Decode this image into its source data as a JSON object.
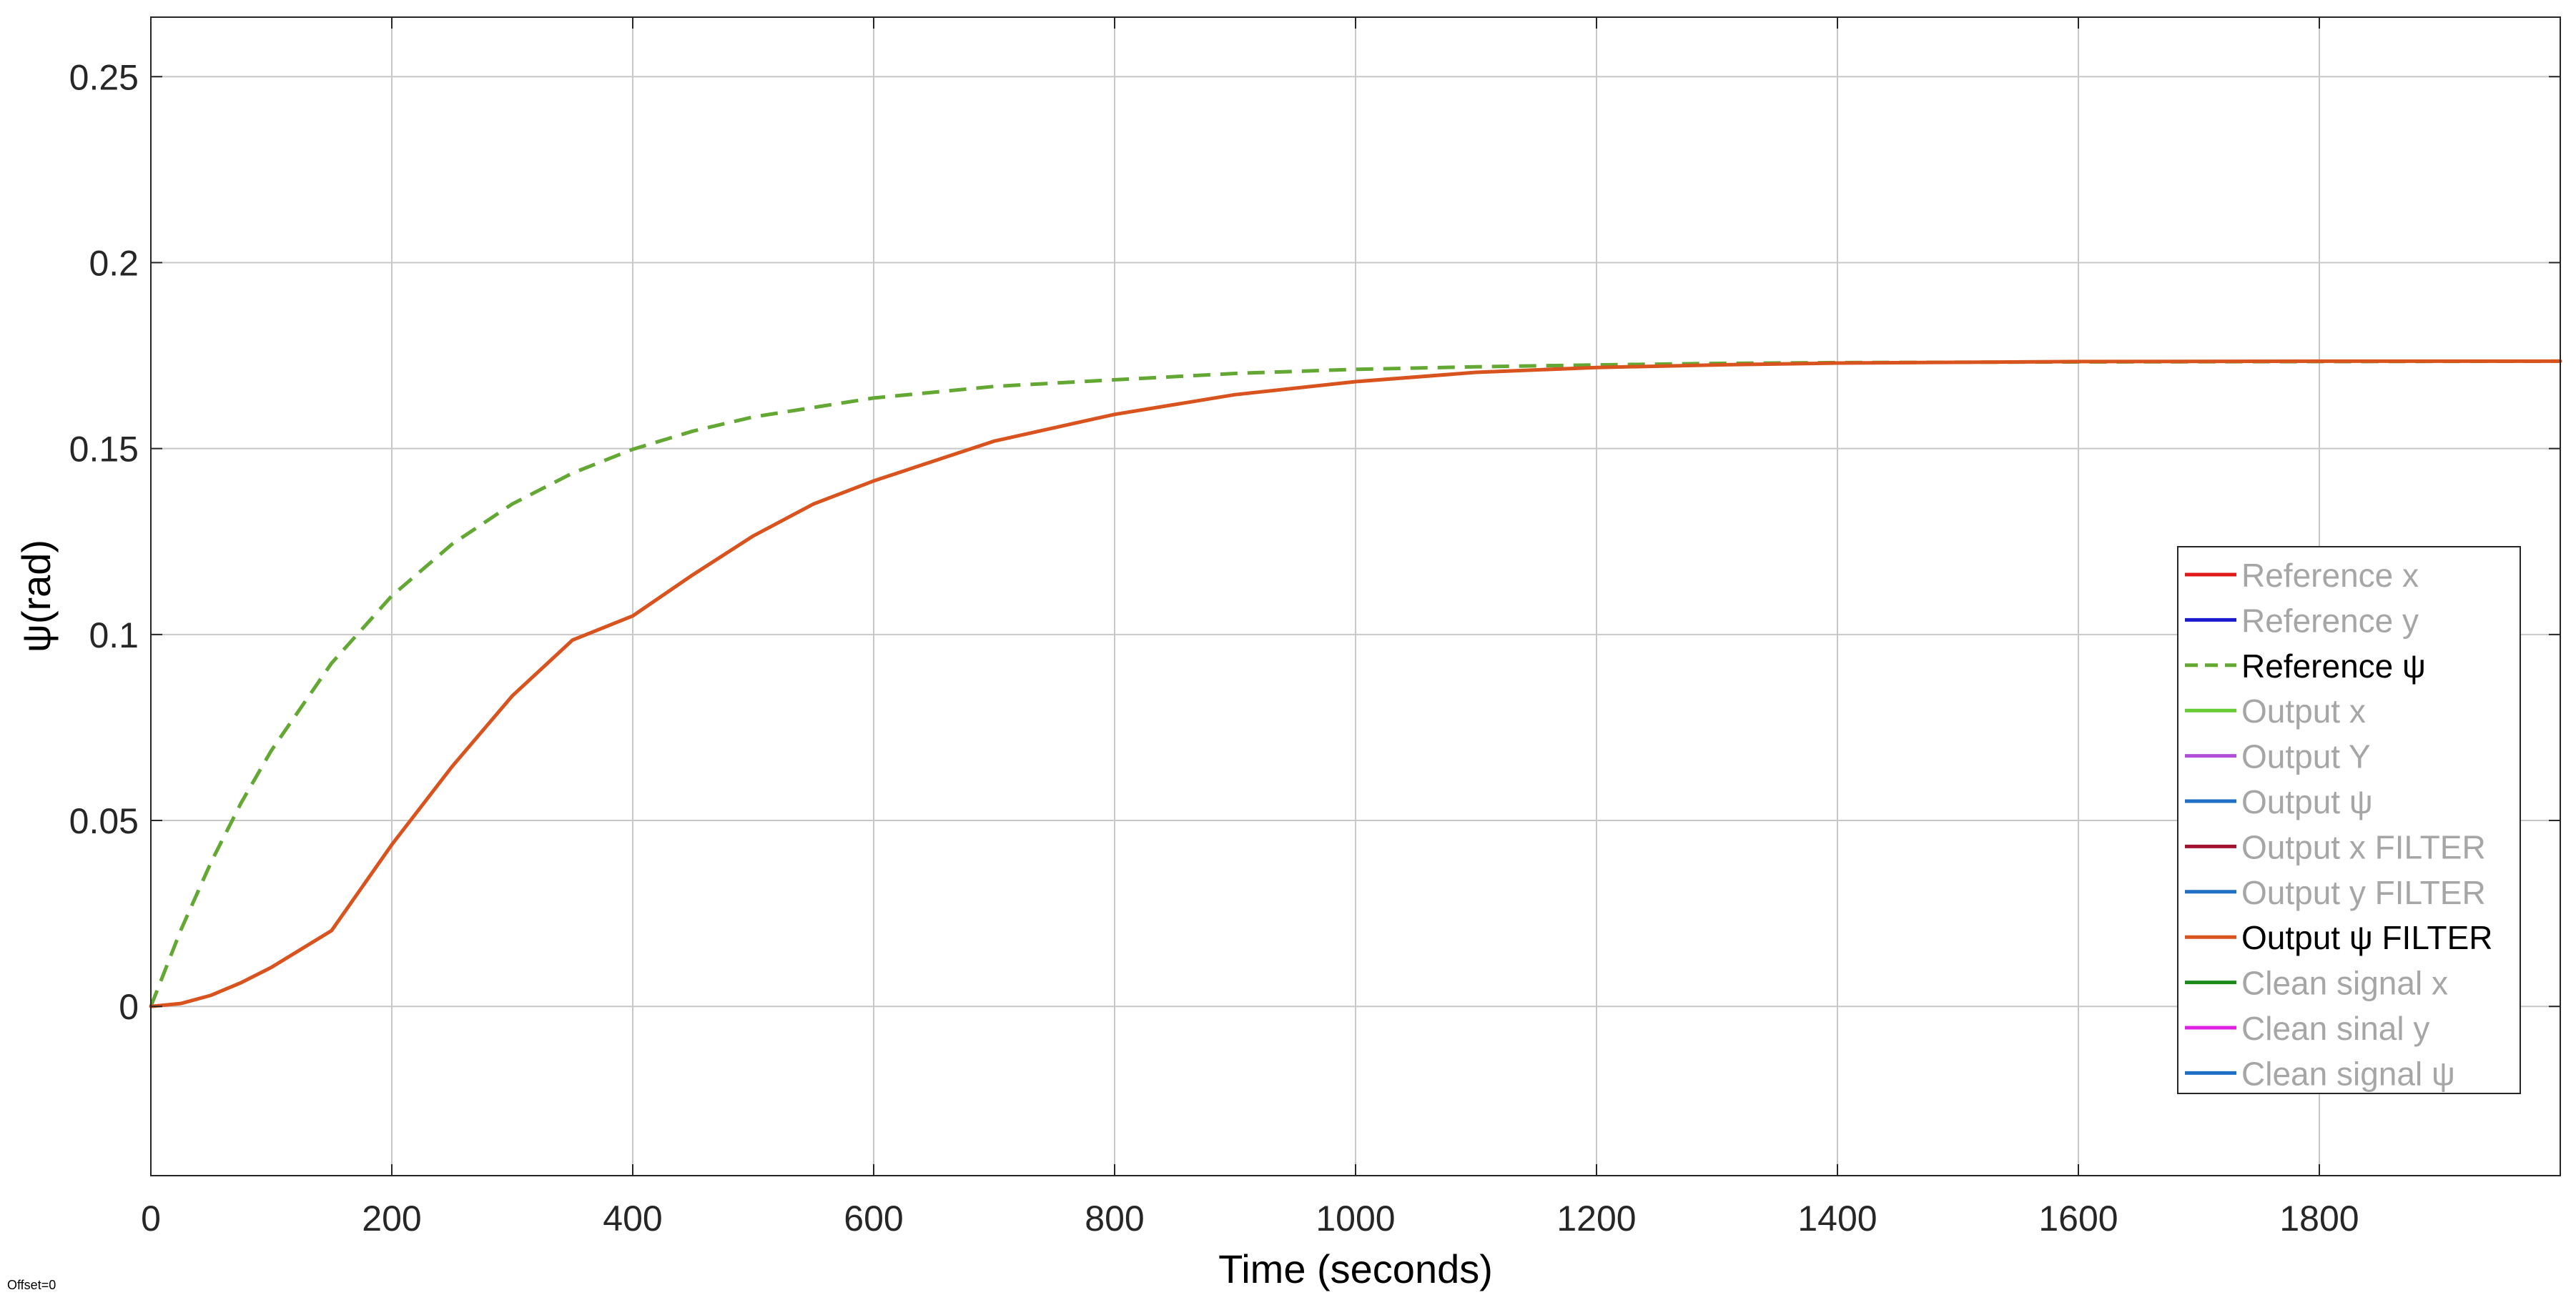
{
  "footer": {
    "offset_label": "Offset=0"
  },
  "chart_data": {
    "type": "line",
    "title": "",
    "xlabel": "Time (seconds)",
    "ylabel": "ψ(rad)",
    "xlim": [
      0,
      2000
    ],
    "ylim": [
      -0.0455,
      0.266
    ],
    "xticks": [
      0,
      200,
      400,
      600,
      800,
      1000,
      1200,
      1400,
      1600,
      1800
    ],
    "xtick_labels": [
      "0",
      "200",
      "400",
      "600",
      "800",
      "1000",
      "1200",
      "1400",
      "1600",
      "1800"
    ],
    "yticks": [
      0,
      0.05,
      0.1,
      0.15,
      0.2,
      0.25
    ],
    "ytick_labels": [
      "0",
      "0.05",
      "0.1",
      "0.15",
      "0.2",
      "0.25"
    ],
    "grid": true,
    "legend_position": "right",
    "legend": [
      {
        "name": "Reference x",
        "color": "#e01818",
        "style": "solid",
        "active": false
      },
      {
        "name": "Reference y",
        "color": "#1a1acc",
        "style": "solid",
        "active": false
      },
      {
        "name": "Reference ψ",
        "color": "#62a832",
        "style": "dashed",
        "active": true
      },
      {
        "name": "Output x",
        "color": "#66cc33",
        "style": "solid",
        "active": false
      },
      {
        "name": "Output Y",
        "color": "#b04fd8",
        "style": "solid",
        "active": false
      },
      {
        "name": "Output ψ",
        "color": "#1f6fc4",
        "style": "solid",
        "active": false
      },
      {
        "name": "Output x FILTER",
        "color": "#a3122e",
        "style": "solid",
        "active": false
      },
      {
        "name": "Output y FILTER",
        "color": "#1f6fc4",
        "style": "solid",
        "active": false
      },
      {
        "name": "Output ψ FILTER",
        "color": "#d9531e",
        "style": "solid",
        "active": true
      },
      {
        "name": "Clean signal x",
        "color": "#1b8a1b",
        "style": "solid",
        "active": false
      },
      {
        "name": "Clean sinal y",
        "color": "#e020e0",
        "style": "solid",
        "active": false
      },
      {
        "name": "Clean signal ψ",
        "color": "#1f6fc4",
        "style": "solid",
        "active": false
      }
    ],
    "inactive_label_color": "#a6a6a6",
    "series": [
      {
        "name": "Reference ψ",
        "color": "#62a832",
        "style": "dashed",
        "x": [
          0,
          25,
          50,
          75,
          100,
          150,
          200,
          250,
          300,
          350,
          400,
          450,
          500,
          600,
          700,
          800,
          900,
          1000,
          1100,
          1200,
          1300,
          1400,
          1600,
          1800,
          2000
        ],
        "y": [
          0,
          0.0206,
          0.0388,
          0.0548,
          0.0688,
          0.0923,
          0.1104,
          0.1243,
          0.1351,
          0.1434,
          0.1498,
          0.1547,
          0.1585,
          0.1636,
          0.1667,
          0.1685,
          0.1702,
          0.1713,
          0.172,
          0.1725,
          0.1729,
          0.1731,
          0.1733,
          0.1734,
          0.1735
        ]
      },
      {
        "name": "Output ψ FILTER",
        "color": "#d9531e",
        "style": "solid",
        "x": [
          0,
          25,
          50,
          75,
          100,
          150,
          200,
          250,
          300,
          350,
          400,
          450,
          500,
          550,
          600,
          700,
          800,
          900,
          1000,
          1100,
          1200,
          1300,
          1400,
          1600,
          1800,
          2000
        ],
        "y": [
          0,
          0.0008,
          0.003,
          0.0064,
          0.0105,
          0.0204,
          0.0435,
          0.0645,
          0.0835,
          0.0985,
          0.105,
          0.1161,
          0.1265,
          0.1351,
          0.1413,
          0.152,
          0.1592,
          0.1645,
          0.168,
          0.1705,
          0.1718,
          0.1725,
          0.173,
          0.1734,
          0.1735,
          0.1735
        ]
      }
    ]
  }
}
